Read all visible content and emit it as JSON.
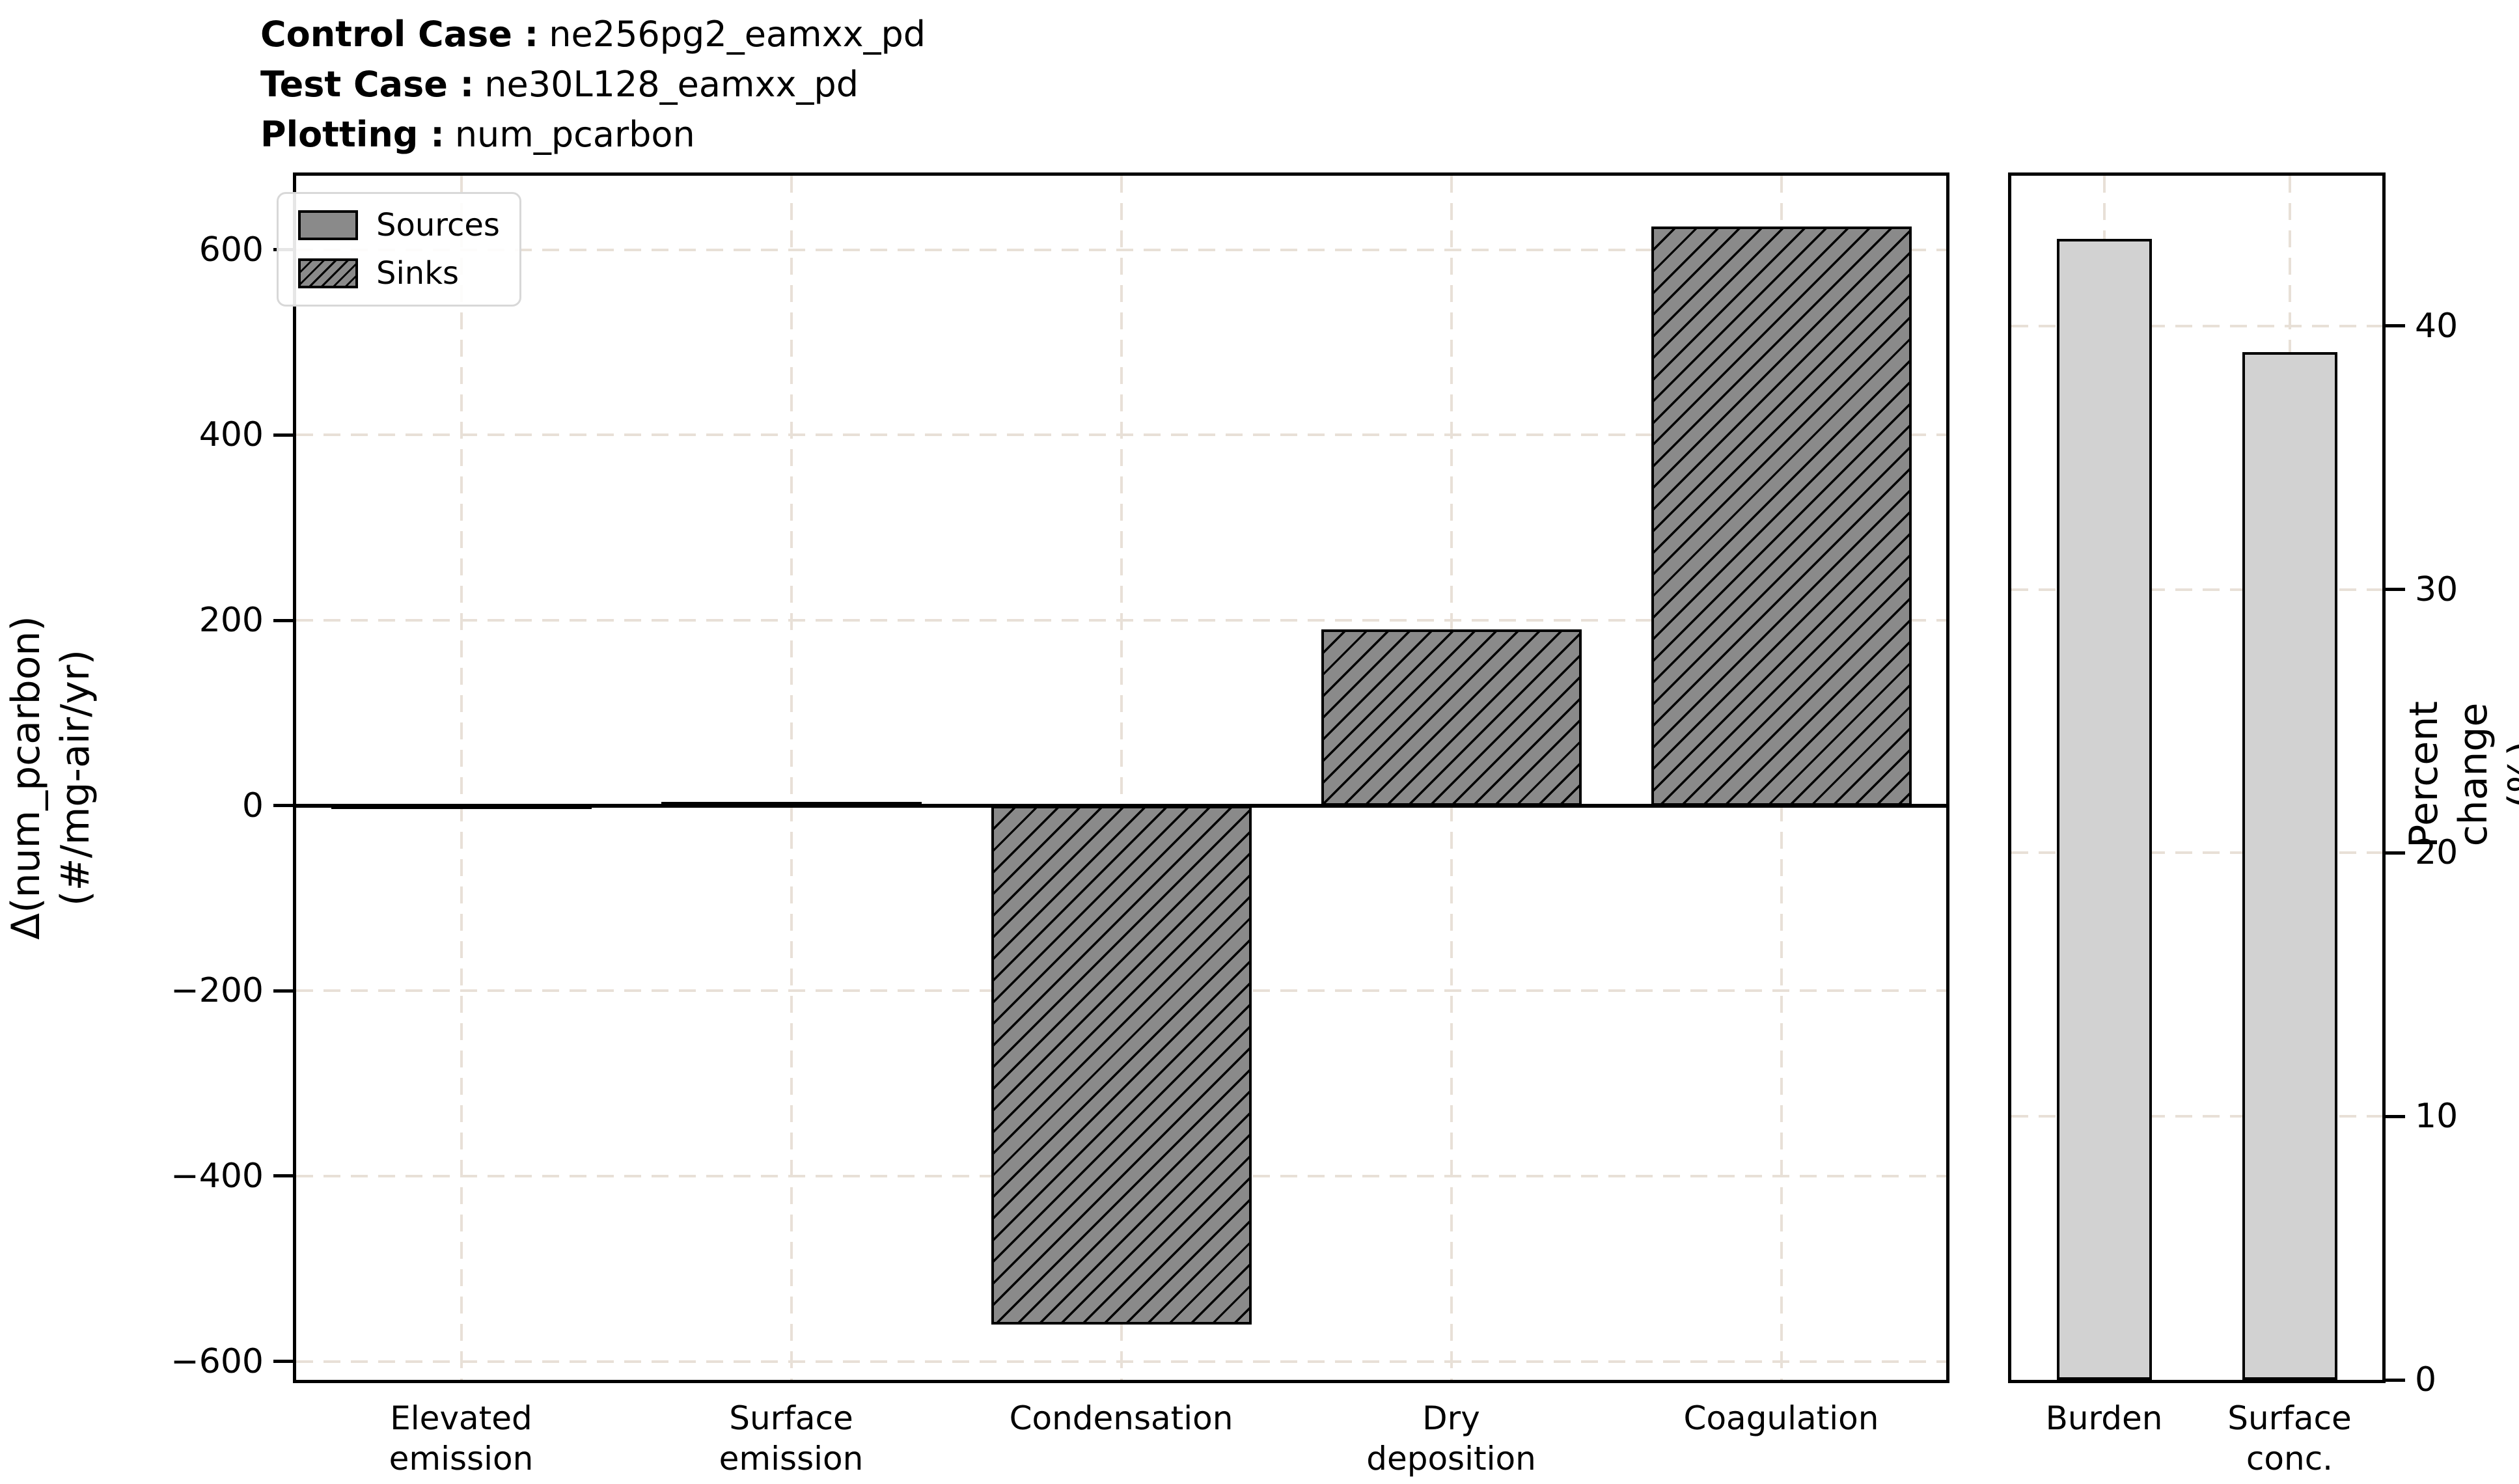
{
  "header": {
    "rows": [
      {
        "label": "Control Case :",
        "value": "ne256pg2_eamxx_pd"
      },
      {
        "label": "Test Case :",
        "value": "ne30L128_eamxx_pd"
      },
      {
        "label": "Plotting :",
        "value": "num_pcarbon"
      }
    ]
  },
  "legend": {
    "items": [
      {
        "label": "Sources",
        "style": "solid"
      },
      {
        "label": "Sinks",
        "style": "hatched"
      }
    ]
  },
  "colors": {
    "bar_fill_gray": "#8a8a8a",
    "bar_fill_light": "#d2d2d2",
    "bar_edge": "#000000",
    "gridline": "#e8e0d7",
    "legend_border": "#d8d8d8",
    "background": "#ffffff",
    "text": "#000000"
  },
  "chart_data": [
    {
      "type": "bar",
      "panel": "main",
      "categories": [
        "Elevated\nemission",
        "Surface\nemission",
        "Condensation",
        "Dry\ndeposition",
        "Coagulation"
      ],
      "values": [
        2,
        4,
        -560,
        190,
        625
      ],
      "groups": [
        "source",
        "source",
        "sink",
        "sink",
        "sink"
      ],
      "ylabel": "Δ(num_pcarbon)\n(#/mg-air/yr)",
      "yticks": [
        600,
        400,
        200,
        0,
        -200,
        -400,
        -600
      ],
      "ylim": [
        -620,
        680
      ],
      "grid": true,
      "zero_line": true,
      "yaxis_side": "left",
      "legend_entries": [
        "Sources",
        "Sinks"
      ],
      "legend_position": "upper left"
    },
    {
      "type": "bar",
      "panel": "percent",
      "categories": [
        "Burden",
        "Surface\nconc."
      ],
      "values": [
        43.3,
        39.0
      ],
      "groups": [
        "percent",
        "percent"
      ],
      "ylabel": "Percent change (%)",
      "yticks": [
        0,
        10,
        20,
        30,
        40
      ],
      "ylim": [
        0,
        45.7
      ],
      "grid": true,
      "zero_line": false,
      "yaxis_side": "right"
    }
  ]
}
